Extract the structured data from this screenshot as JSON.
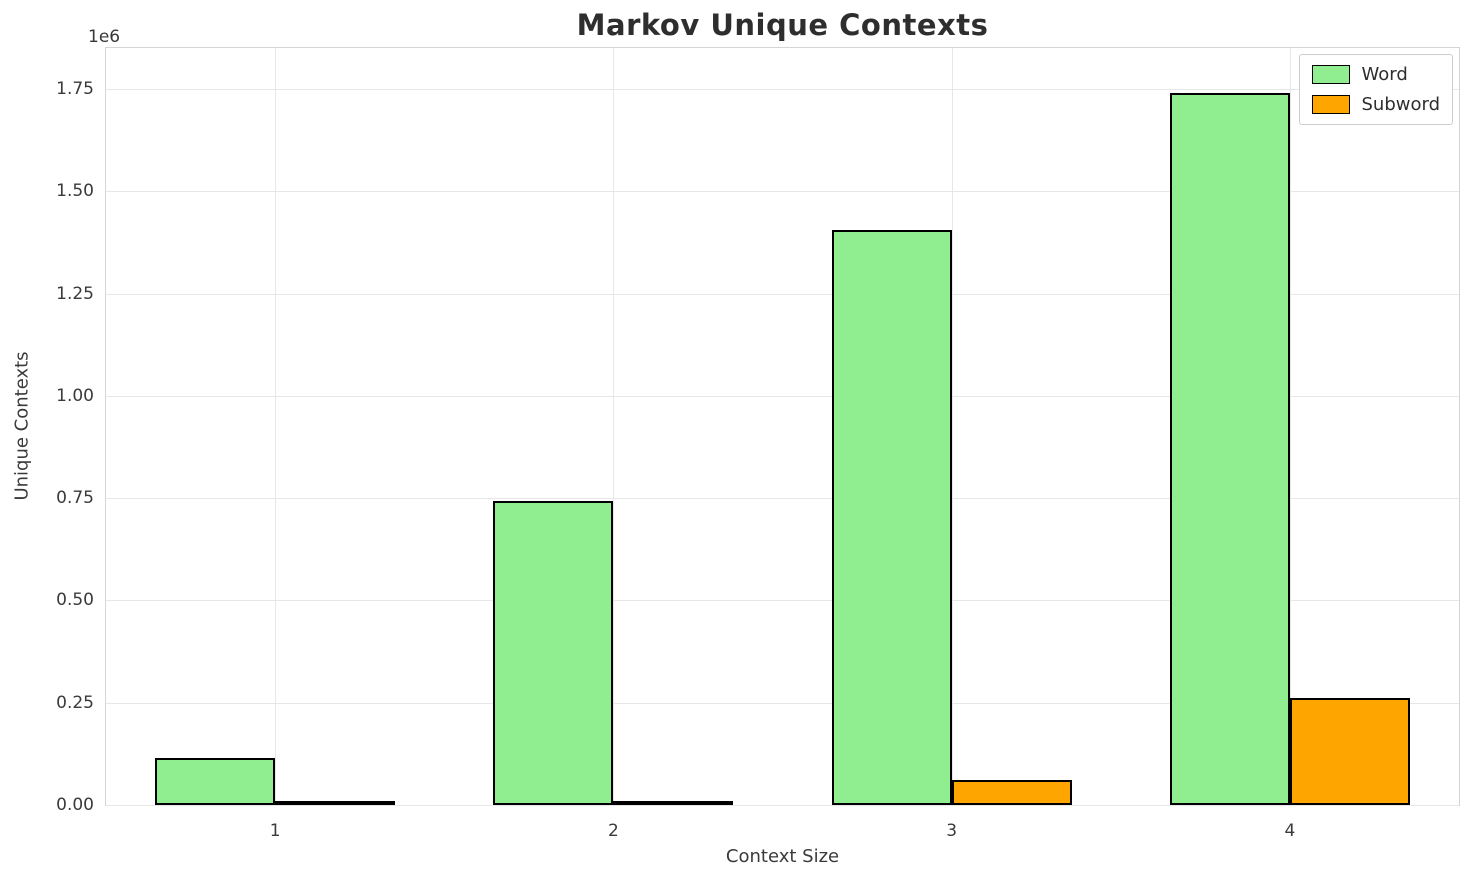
{
  "chart_data": {
    "type": "bar",
    "title": "Markov Unique Contexts",
    "xlabel": "Context Size",
    "ylabel": "Unique Contexts",
    "y_offset_text": "1e6",
    "categories": [
      "1",
      "2",
      "3",
      "4"
    ],
    "series": [
      {
        "name": "Word",
        "color": "#90EE90",
        "values": [
          115000,
          742000,
          1405000,
          1740000
        ]
      },
      {
        "name": "Subword",
        "color": "#FFA500",
        "values": [
          3000,
          10000,
          60000,
          262000
        ]
      }
    ],
    "ylim": [
      0,
      1850000
    ],
    "yticks": [
      0,
      250000,
      500000,
      750000,
      1000000,
      1250000,
      1500000,
      1750000
    ],
    "ytick_labels": [
      "0.00",
      "0.25",
      "0.50",
      "0.75",
      "1.00",
      "1.25",
      "1.50",
      "1.75"
    ],
    "grid": true,
    "legend_position": "upper right",
    "bar_edge_color": "#000000"
  }
}
